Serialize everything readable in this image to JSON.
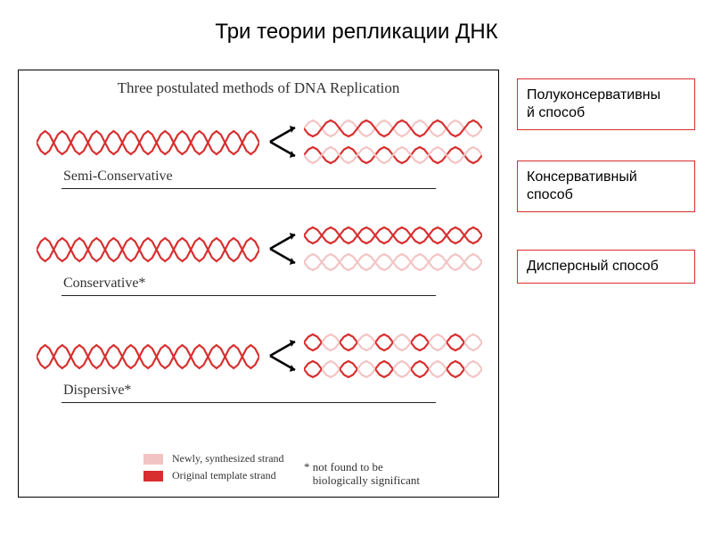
{
  "title": "Три теории репликации ДНК",
  "diagram": {
    "heading": "Three postulated methods of DNA Replication",
    "colors": {
      "original": "#d82e2e",
      "new": "#f3c4c4",
      "arrow": "#000000",
      "border": "#000000",
      "rule": "#222222",
      "label_border": "#d82e2e"
    },
    "helix": {
      "parent_segments": 13,
      "child_segments": 10,
      "strand_width": 2.2
    },
    "methods": [
      {
        "key": "semi",
        "label": "Semi-Conservative",
        "parent_pattern": [
          "orig",
          "orig"
        ],
        "children": [
          {
            "pattern": [
              "orig",
              "new"
            ]
          },
          {
            "pattern": [
              "new",
              "orig"
            ]
          }
        ]
      },
      {
        "key": "cons",
        "label": "Conservative*",
        "parent_pattern": [
          "orig",
          "orig"
        ],
        "children": [
          {
            "pattern": [
              "orig",
              "orig"
            ]
          },
          {
            "pattern": [
              "new",
              "new"
            ]
          }
        ]
      },
      {
        "key": "disp",
        "label": "Dispersive*",
        "parent_pattern": [
          "orig",
          "orig"
        ],
        "children": [
          {
            "pattern": "dispersive"
          },
          {
            "pattern": "dispersive"
          }
        ]
      }
    ],
    "legend": {
      "new_label": "Newly, synthesized strand",
      "orig_label": "Original template strand"
    },
    "footnote": "* not found to be\n   biologically significant"
  },
  "side_labels": [
    {
      "text": "Полуконсервативны\nй способ"
    },
    {
      "text": "Консервативный\nспособ"
    },
    {
      "text": "Дисперсный способ"
    }
  ]
}
